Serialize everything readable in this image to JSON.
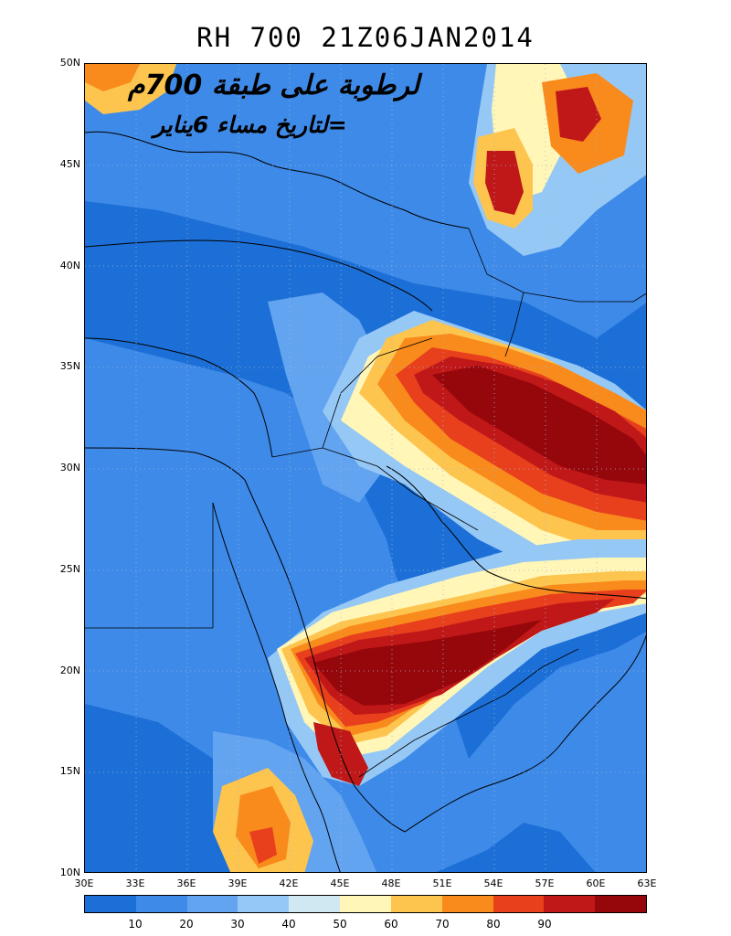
{
  "title": "RH 700 21Z06JAN2014",
  "annotation": {
    "line1": "لرطوبة على طبقة 700م",
    "line2": "=لتاريخ مساء 6يناير"
  },
  "lat_labels": [
    "50N",
    "45N",
    "40N",
    "35N",
    "30N",
    "25N",
    "20N",
    "15N",
    "10N"
  ],
  "lon_labels": [
    "30E",
    "33E",
    "36E",
    "39E",
    "42E",
    "45E",
    "48E",
    "51E",
    "54E",
    "57E",
    "60E",
    "63E"
  ],
  "colorbar": {
    "colors": [
      "#1c6fd6",
      "#3e8ae8",
      "#63a4f0",
      "#96c8f5",
      "#cfe8f2",
      "#fff6b8",
      "#fdc44e",
      "#f98a1c",
      "#e8401c",
      "#c01818",
      "#96070b"
    ],
    "labels": [
      "10",
      "20",
      "30",
      "40",
      "50",
      "60",
      "70",
      "80",
      "90"
    ]
  }
}
